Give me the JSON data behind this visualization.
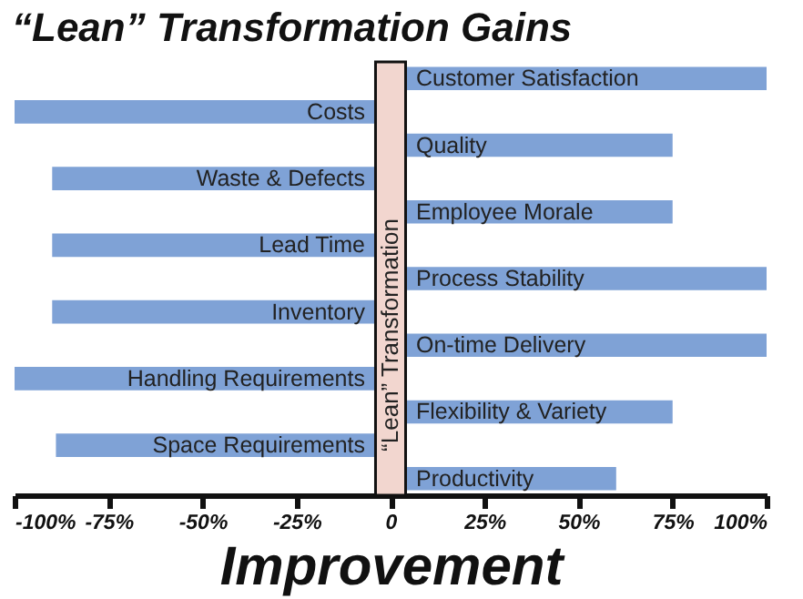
{
  "chart_data": {
    "type": "bar",
    "orientation": "horizontal",
    "title": "“Lean” Transformation Gains",
    "xlabel": "Improvement",
    "categories": [
      "Customer Satisfaction",
      "Costs",
      "Quality",
      "Waste & Defects",
      "Employee Morale",
      "Lead Time",
      "Process Stability",
      "Inventory",
      "On-time Delivery",
      "Handling Requirements",
      "Flexibility & Variety",
      "Space Requirements",
      "Productivity"
    ],
    "values": [
      100,
      -100,
      75,
      -90,
      75,
      -90,
      100,
      -90,
      100,
      -100,
      75,
      -89,
      60
    ],
    "color": "#7fa2d6",
    "xlim": [
      -100,
      100
    ],
    "xticks": [
      {
        "value": -100,
        "label": "-100%"
      },
      {
        "value": -75,
        "label": "-75%"
      },
      {
        "value": -50,
        "label": "-50%"
      },
      {
        "value": -25,
        "label": "-25%"
      },
      0,
      {
        "value": 25,
        "label": "25%"
      },
      {
        "value": 50,
        "label": "50%"
      },
      {
        "value": 75,
        "label": "75%"
      },
      {
        "value": 100,
        "label": "100%"
      }
    ],
    "grid": false,
    "bands": [
      {
        "axis": "x",
        "from": -4,
        "to": 4,
        "label": "“Lean” Transformation",
        "color": "#f2d6cf"
      }
    ]
  }
}
